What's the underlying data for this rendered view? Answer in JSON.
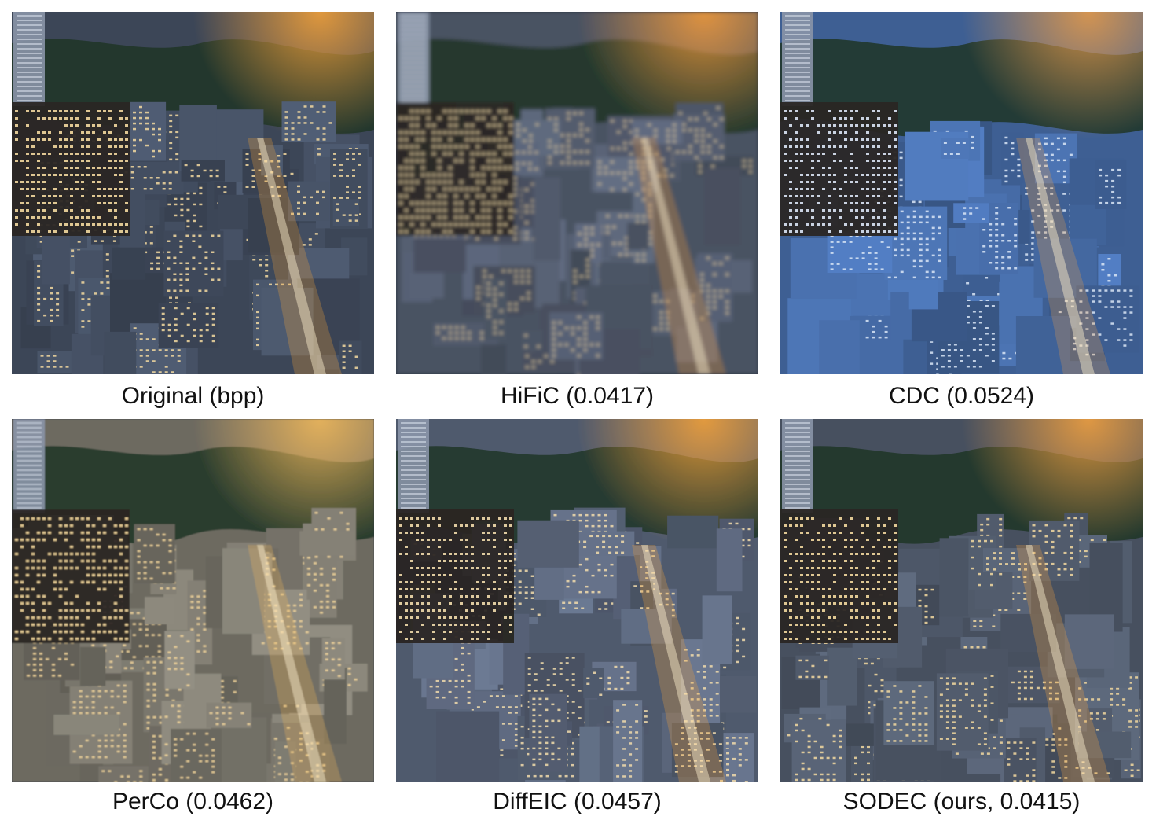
{
  "panels": [
    {
      "id": "original",
      "caption": "Original (bpp)",
      "tone": "#3c4657",
      "glow": "#f2a13a",
      "window": "#f3d9a0",
      "blur": 0
    },
    {
      "id": "hific",
      "caption": "HiFiC (0.0417)",
      "tone": "#4a5262",
      "glow": "#f09a3c",
      "window": "#e8d3a6",
      "blur": 2.5
    },
    {
      "id": "cdc",
      "caption": "CDC (0.0524)",
      "tone": "#3e5f93",
      "glow": "#e49a4a",
      "window": "#dbe6f6",
      "blur": 0
    },
    {
      "id": "perco",
      "caption": "PerCo (0.0462)",
      "tone": "#6d6a61",
      "glow": "#f0b85a",
      "window": "#f0d49a",
      "blur": 0.8
    },
    {
      "id": "diffeic",
      "caption": "DiffEIC (0.0457)",
      "tone": "#505a6d",
      "glow": "#f2a13a",
      "window": "#f2dcac",
      "blur": 0.3
    },
    {
      "id": "sodec",
      "caption": "SODEC (ours, 0.0415)",
      "tone": "#47505f",
      "glow": "#f0a040",
      "window": "#f3d9a0",
      "blur": 0
    }
  ]
}
